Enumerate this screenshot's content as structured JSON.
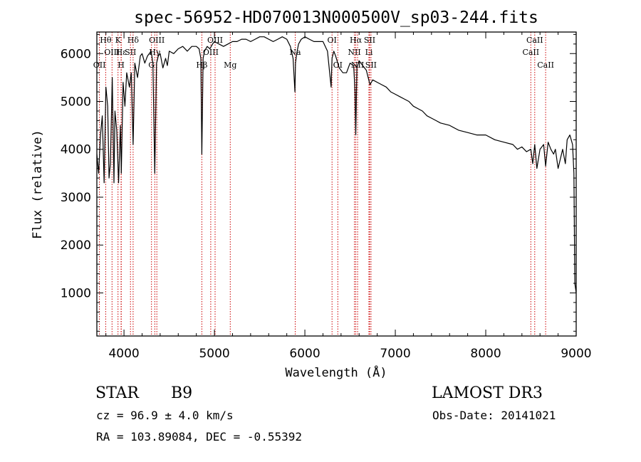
{
  "chart_data": {
    "type": "line",
    "title": "spec-56952-HD070013N000500V_sp03-244.fits",
    "xlabel": "Wavelength (Å)",
    "ylabel": "Flux (relative)",
    "xlim": [
      3700,
      9000
    ],
    "ylim": [
      100,
      6450
    ],
    "xticks": [
      4000,
      5000,
      6000,
      7000,
      8000,
      9000
    ],
    "yticks": [
      1000,
      2000,
      3000,
      4000,
      5000,
      6000
    ],
    "line_color": "#000000",
    "marker_color": "#cc0000",
    "spectrum": {
      "x": [
        3700,
        3720,
        3740,
        3760,
        3780,
        3800,
        3820,
        3835,
        3850,
        3870,
        3889,
        3900,
        3920,
        3940,
        3960,
        3970,
        3990,
        4010,
        4030,
        4060,
        4080,
        4101,
        4120,
        4150,
        4180,
        4200,
        4230,
        4260,
        4300,
        4320,
        4340,
        4360,
        4380,
        4400,
        4430,
        4460,
        4480,
        4500,
        4550,
        4600,
        4650,
        4700,
        4750,
        4800,
        4830,
        4850,
        4861,
        4875,
        4890,
        4920,
        4950,
        4980,
        5000,
        5050,
        5100,
        5150,
        5200,
        5250,
        5300,
        5350,
        5400,
        5450,
        5500,
        5550,
        5600,
        5650,
        5700,
        5750,
        5800,
        5840,
        5870,
        5890,
        5896,
        5910,
        5930,
        5960,
        6000,
        6050,
        6100,
        6150,
        6200,
        6250,
        6290,
        6300,
        6320,
        6340,
        6380,
        6420,
        6460,
        6500,
        6540,
        6555,
        6563,
        6575,
        6600,
        6640,
        6680,
        6700,
        6720,
        6750,
        6800,
        6850,
        6900,
        6950,
        7000,
        7050,
        7100,
        7150,
        7200,
        7250,
        7300,
        7350,
        7400,
        7450,
        7500,
        7600,
        7700,
        7800,
        7900,
        8000,
        8100,
        8200,
        8300,
        8350,
        8400,
        8450,
        8498,
        8520,
        8542,
        8565,
        8600,
        8640,
        8662,
        8690,
        8720,
        8750,
        8770,
        8800,
        8850,
        8880,
        8900,
        8930,
        8960,
        8975,
        8985,
        9000
      ],
      "y": [
        3900,
        3500,
        4300,
        4700,
        3300,
        5300,
        4900,
        3400,
        3700,
        5500,
        3300,
        4800,
        4400,
        3300,
        4500,
        3500,
        5400,
        4900,
        5600,
        5300,
        5600,
        4100,
        5800,
        5500,
        5950,
        6000,
        5800,
        5950,
        6050,
        5800,
        3500,
        5800,
        5950,
        6000,
        5700,
        5900,
        5750,
        6050,
        6000,
        6100,
        6150,
        6050,
        6150,
        6150,
        6100,
        5900,
        3900,
        5900,
        6050,
        6150,
        6100,
        6200,
        6250,
        6200,
        6150,
        6200,
        6250,
        6250,
        6300,
        6300,
        6250,
        6300,
        6350,
        6350,
        6300,
        6250,
        6300,
        6350,
        6300,
        6150,
        5900,
        5200,
        5800,
        6000,
        6200,
        6300,
        6350,
        6300,
        6250,
        6250,
        6250,
        6050,
        5300,
        5900,
        6050,
        5950,
        5700,
        5600,
        5600,
        5800,
        5750,
        5200,
        4300,
        5700,
        5850,
        5750,
        5650,
        5500,
        5350,
        5450,
        5400,
        5350,
        5300,
        5200,
        5150,
        5100,
        5050,
        5000,
        4900,
        4850,
        4800,
        4700,
        4650,
        4600,
        4550,
        4500,
        4400,
        4350,
        4300,
        4300,
        4200,
        4150,
        4100,
        4000,
        4050,
        3950,
        4000,
        3700,
        4100,
        3600,
        4000,
        4100,
        3650,
        4150,
        4000,
        3900,
        4000,
        3600,
        4000,
        3700,
        4200,
        4300,
        4100,
        3500,
        1200,
        1000
      ],
      "line_width": 1.2
    },
    "lines": [
      {
        "label": "Hθ",
        "wl": 3798,
        "row": 1
      },
      {
        "label": "OII",
        "wl": 3728,
        "row": 3
      },
      {
        "label": "OIII",
        "wl": 3868,
        "row": 2
      },
      {
        "label": "K",
        "wl": 3934,
        "row": 1
      },
      {
        "label": "Hε",
        "wl": 3970,
        "row": 2
      },
      {
        "label": "H",
        "wl": 3968,
        "row": 3
      },
      {
        "label": "SII",
        "wl": 4072,
        "row": 2
      },
      {
        "label": "Hδ",
        "wl": 4101,
        "row": 1
      },
      {
        "label": "G",
        "wl": 4304,
        "row": 3
      },
      {
        "label": "OIII",
        "wl": 4363,
        "row": 1
      },
      {
        "label": "Hγ",
        "wl": 4340,
        "row": 2
      },
      {
        "label": "Hβ",
        "wl": 4861,
        "row": 3
      },
      {
        "label": "OIII",
        "wl": 4959,
        "row": 2
      },
      {
        "label": "OIII",
        "wl": 5007,
        "row": 1
      },
      {
        "label": "Mg",
        "wl": 5175,
        "row": 3
      },
      {
        "label": "Na",
        "wl": 5893,
        "row": 2
      },
      {
        "label": "OI",
        "wl": 6300,
        "row": 1
      },
      {
        "label": "OI",
        "wl": 6364,
        "row": 3
      },
      {
        "label": "NII",
        "wl": 6548,
        "row": 2
      },
      {
        "label": "Hα",
        "wl": 6563,
        "row": 1
      },
      {
        "label": "NII",
        "wl": 6583,
        "row": 3
      },
      {
        "label": "Li",
        "wl": 6708,
        "row": 2
      },
      {
        "label": "SII",
        "wl": 6716,
        "row": 1
      },
      {
        "label": "SII",
        "wl": 6731,
        "row": 3
      },
      {
        "label": "CaII",
        "wl": 8498,
        "row": 2
      },
      {
        "label": "CaII",
        "wl": 8542,
        "row": 1
      },
      {
        "label": "CaII",
        "wl": 8662,
        "row": 3
      }
    ]
  },
  "info": {
    "object_class": "STAR",
    "subclass": "B9",
    "survey": "LAMOST DR3",
    "cz": "cz = 96.9 ± 4.0 km/s",
    "obs_date": "Obs-Date: 20141021",
    "coords": "RA = 103.89084, DEC =  -0.55392"
  }
}
